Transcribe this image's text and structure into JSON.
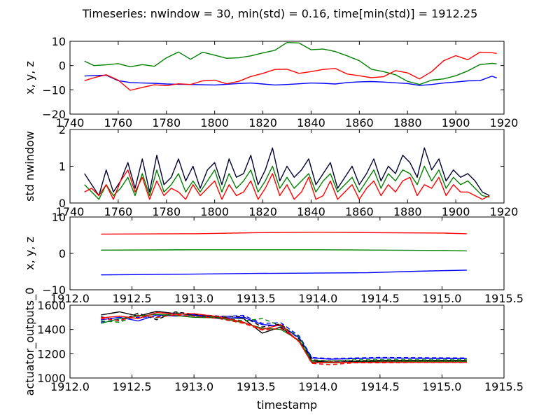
{
  "figure": {
    "suptitle": "Timeseries: nwindow = 30, min(std) = 0.16, time[min(std)] = 1912.25"
  },
  "chart_data": [
    {
      "type": "line",
      "ylabel": "x, y, z",
      "xlim": [
        1740,
        1920
      ],
      "ylim": [
        -20,
        10
      ],
      "xticks": [
        1740,
        1760,
        1780,
        1800,
        1820,
        1840,
        1860,
        1880,
        1900,
        1920
      ],
      "yticks": [
        -20,
        -10,
        0,
        10
      ],
      "series": [
        {
          "color": "#0000ff",
          "x": [
            1746,
            1750,
            1755,
            1760,
            1765,
            1770,
            1775,
            1780,
            1785,
            1790,
            1795,
            1800,
            1805,
            1810,
            1815,
            1820,
            1825,
            1830,
            1835,
            1840,
            1845,
            1850,
            1855,
            1860,
            1865,
            1870,
            1875,
            1880,
            1885,
            1890,
            1895,
            1900,
            1905,
            1910,
            1915,
            1917
          ],
          "y": [
            -4.3,
            -4.1,
            -4.0,
            -6.2,
            -7.0,
            -7.2,
            -7.3,
            -7.6,
            -7.7,
            -7.8,
            -7.9,
            -8.0,
            -7.7,
            -7.4,
            -7.2,
            -7.6,
            -8.0,
            -7.8,
            -7.5,
            -7.2,
            -7.3,
            -7.6,
            -7.0,
            -6.7,
            -6.6,
            -6.8,
            -7.1,
            -7.4,
            -8.2,
            -7.8,
            -7.2,
            -6.8,
            -6.3,
            -6.2,
            -4.4,
            -5.1
          ]
        },
        {
          "color": "#008000",
          "x": [
            1746,
            1750,
            1755,
            1760,
            1765,
            1770,
            1775,
            1780,
            1785,
            1790,
            1795,
            1800,
            1805,
            1810,
            1815,
            1820,
            1825,
            1830,
            1835,
            1840,
            1845,
            1850,
            1855,
            1860,
            1865,
            1870,
            1875,
            1880,
            1885,
            1890,
            1895,
            1900,
            1905,
            1910,
            1915,
            1917
          ],
          "y": [
            1.8,
            0.0,
            0.3,
            0.8,
            -0.5,
            0.4,
            -0.3,
            3.2,
            5.6,
            2.6,
            5.5,
            4.3,
            3.0,
            3.2,
            4.0,
            5.2,
            6.3,
            9.5,
            9.3,
            6.5,
            6.8,
            5.8,
            4.0,
            2.0,
            -1.5,
            -2.5,
            -3.8,
            -6.5,
            -7.8,
            -6.0,
            -5.5,
            -4.2,
            -2.2,
            0.4,
            0.9,
            0.7
          ]
        },
        {
          "color": "#ff0000",
          "x": [
            1746,
            1750,
            1755,
            1760,
            1765,
            1770,
            1775,
            1780,
            1785,
            1790,
            1795,
            1800,
            1805,
            1810,
            1815,
            1820,
            1825,
            1830,
            1835,
            1840,
            1845,
            1850,
            1855,
            1860,
            1865,
            1870,
            1875,
            1880,
            1885,
            1890,
            1895,
            1900,
            1905,
            1910,
            1915,
            1917
          ],
          "y": [
            -6.2,
            -5.0,
            -3.8,
            -6.0,
            -10.2,
            -9.0,
            -7.9,
            -8.3,
            -7.5,
            -7.8,
            -6.3,
            -6.0,
            -7.5,
            -6.5,
            -4.5,
            -3.2,
            -1.6,
            -1.5,
            -3.2,
            -2.5,
            -1.6,
            -1.2,
            -3.5,
            -4.2,
            -5.0,
            -4.6,
            -2.1,
            -3.0,
            -5.5,
            -2.5,
            2.0,
            4.1,
            2.4,
            5.5,
            5.3,
            5.0
          ]
        }
      ]
    },
    {
      "type": "line",
      "ylabel": "std nwindow",
      "xlim": [
        1740,
        1920
      ],
      "ylim": [
        0,
        2
      ],
      "xticks": [
        1740,
        1760,
        1780,
        1800,
        1820,
        1840,
        1860,
        1880,
        1900,
        1920
      ],
      "yticks": [
        0,
        1,
        2
      ],
      "series": [
        {
          "color": "#000033",
          "x": [
            1746,
            1749,
            1752,
            1755,
            1758,
            1761,
            1764,
            1767,
            1770,
            1773,
            1776,
            1779,
            1782,
            1785,
            1788,
            1791,
            1794,
            1797,
            1800,
            1803,
            1806,
            1809,
            1812,
            1815,
            1818,
            1821,
            1824,
            1827,
            1830,
            1833,
            1836,
            1839,
            1842,
            1845,
            1848,
            1851,
            1854,
            1857,
            1860,
            1863,
            1866,
            1869,
            1872,
            1875,
            1878,
            1881,
            1884,
            1887,
            1890,
            1893,
            1896,
            1899,
            1902,
            1905,
            1908,
            1911,
            1914
          ],
          "y": [
            0.8,
            0.5,
            0.2,
            0.9,
            0.3,
            0.6,
            1.1,
            0.4,
            1.2,
            0.3,
            1.3,
            0.5,
            0.7,
            1.2,
            0.6,
            1.0,
            0.4,
            0.9,
            1.1,
            0.5,
            1.2,
            0.7,
            0.8,
            1.3,
            0.5,
            0.9,
            1.5,
            0.6,
            1.0,
            0.7,
            0.9,
            1.2,
            0.5,
            0.8,
            1.1,
            0.4,
            0.7,
            1.0,
            0.5,
            0.8,
            1.2,
            0.6,
            1.0,
            0.8,
            1.3,
            1.1,
            0.7,
            1.5,
            0.9,
            1.2,
            0.6,
            0.9,
            0.7,
            0.8,
            0.6,
            0.3,
            0.2
          ]
        },
        {
          "color": "#008000",
          "x": [
            1746,
            1749,
            1752,
            1755,
            1758,
            1761,
            1764,
            1767,
            1770,
            1773,
            1776,
            1779,
            1782,
            1785,
            1788,
            1791,
            1794,
            1797,
            1800,
            1803,
            1806,
            1809,
            1812,
            1815,
            1818,
            1821,
            1824,
            1827,
            1830,
            1833,
            1836,
            1839,
            1842,
            1845,
            1848,
            1851,
            1854,
            1857,
            1860,
            1863,
            1866,
            1869,
            1872,
            1875,
            1878,
            1881,
            1884,
            1887,
            1890,
            1893,
            1896,
            1899,
            1902,
            1905,
            1908,
            1911,
            1914
          ],
          "y": [
            0.5,
            0.3,
            0.1,
            0.5,
            0.2,
            0.4,
            0.7,
            0.2,
            0.8,
            0.2,
            0.9,
            0.3,
            0.5,
            0.8,
            0.3,
            0.6,
            0.3,
            0.6,
            0.9,
            0.3,
            0.8,
            0.4,
            0.6,
            0.9,
            0.3,
            0.6,
            1.0,
            0.4,
            0.7,
            0.4,
            0.6,
            0.8,
            0.3,
            0.6,
            0.8,
            0.3,
            0.5,
            0.7,
            0.3,
            0.6,
            0.9,
            0.4,
            0.8,
            0.6,
            0.9,
            0.8,
            0.5,
            1.0,
            0.6,
            0.9,
            0.4,
            0.7,
            0.5,
            0.6,
            0.4,
            0.2,
            0.16
          ]
        },
        {
          "color": "#ff0000",
          "x": [
            1746,
            1749,
            1752,
            1755,
            1758,
            1761,
            1764,
            1767,
            1770,
            1773,
            1776,
            1779,
            1782,
            1785,
            1788,
            1791,
            1794,
            1797,
            1800,
            1803,
            1806,
            1809,
            1812,
            1815,
            1818,
            1821,
            1824,
            1827,
            1830,
            1833,
            1836,
            1839,
            1842,
            1845,
            1848,
            1851,
            1854,
            1857,
            1860,
            1863,
            1866,
            1869,
            1872,
            1875,
            1878,
            1881,
            1884,
            1887,
            1890,
            1893,
            1896,
            1899,
            1902,
            1905,
            1908,
            1911,
            1914
          ],
          "y": [
            0.3,
            0.4,
            0.2,
            0.5,
            0.1,
            0.6,
            0.9,
            0.3,
            0.7,
            0.1,
            0.6,
            0.2,
            0.4,
            0.3,
            0.1,
            0.5,
            0.2,
            0.4,
            0.6,
            0.1,
            0.5,
            0.2,
            0.3,
            0.6,
            0.1,
            0.4,
            0.8,
            0.2,
            0.5,
            0.1,
            0.3,
            0.7,
            0.1,
            0.2,
            0.6,
            0.1,
            0.3,
            0.5,
            0.1,
            0.4,
            0.6,
            0.2,
            0.5,
            0.3,
            0.6,
            0.7,
            0.2,
            0.5,
            0.4,
            0.7,
            0.2,
            0.5,
            0.3,
            0.3,
            0.2,
            0.1,
            0.2
          ]
        }
      ]
    },
    {
      "type": "line",
      "ylabel": "x, y, z",
      "xlim": [
        1912.0,
        1915.5
      ],
      "ylim": [
        -10,
        10
      ],
      "xticks": [
        1912.0,
        1912.5,
        1913.0,
        1913.5,
        1914.0,
        1914.5,
        1915.0,
        1915.5
      ],
      "yticks": [
        -10,
        0,
        10
      ],
      "series": [
        {
          "color": "#ff0000",
          "x": [
            1912.25,
            1913.0,
            1913.5,
            1914.0,
            1914.5,
            1915.0,
            1915.2
          ],
          "y": [
            5.3,
            5.4,
            5.7,
            5.8,
            5.7,
            5.6,
            5.4
          ]
        },
        {
          "color": "#008000",
          "x": [
            1912.25,
            1913.0,
            1913.5,
            1914.0,
            1914.5,
            1915.0,
            1915.2
          ],
          "y": [
            0.9,
            1.0,
            1.0,
            1.0,
            0.9,
            0.8,
            0.7
          ]
        },
        {
          "color": "#0000ff",
          "x": [
            1912.25,
            1913.0,
            1913.5,
            1914.0,
            1914.4,
            1914.8,
            1915.2
          ],
          "y": [
            -5.9,
            -5.7,
            -5.5,
            -5.4,
            -5.3,
            -4.9,
            -4.6
          ]
        }
      ]
    },
    {
      "type": "line",
      "ylabel": "actuator_outputs_0",
      "xlabel": "timestamp",
      "xlim": [
        1912.0,
        1915.5
      ],
      "ylim": [
        1000,
        1600
      ],
      "xticks": [
        1912.0,
        1912.5,
        1913.0,
        1913.5,
        1914.0,
        1914.5,
        1915.0,
        1915.5
      ],
      "yticks": [
        1000,
        1200,
        1400,
        1600
      ],
      "series": [
        {
          "color": "#000000",
          "dash": "none",
          "x": [
            1912.25,
            1912.4,
            1912.55,
            1912.7,
            1912.85,
            1913.0,
            1913.2,
            1913.4,
            1913.55,
            1913.7,
            1913.85,
            1913.95,
            1914.1,
            1914.3,
            1914.5,
            1914.8,
            1915.2
          ],
          "y": [
            1520,
            1545,
            1510,
            1550,
            1530,
            1520,
            1500,
            1490,
            1370,
            1420,
            1300,
            1140,
            1130,
            1135,
            1140,
            1140,
            1140
          ]
        },
        {
          "color": "#000000",
          "dash": "6,4",
          "x": [
            1912.25,
            1912.4,
            1912.55,
            1912.7,
            1912.85,
            1913.0,
            1913.2,
            1913.4,
            1913.55,
            1913.7,
            1913.85,
            1913.95,
            1914.1,
            1914.3,
            1914.5,
            1914.8,
            1915.2
          ],
          "y": [
            1505,
            1470,
            1535,
            1480,
            1545,
            1525,
            1510,
            1505,
            1420,
            1445,
            1320,
            1150,
            1140,
            1142,
            1145,
            1145,
            1145
          ]
        },
        {
          "color": "#0000ff",
          "dash": "none",
          "x": [
            1912.25,
            1912.4,
            1912.55,
            1912.7,
            1912.85,
            1913.0,
            1913.2,
            1913.4,
            1913.55,
            1913.7,
            1913.85,
            1913.95,
            1914.1,
            1914.3,
            1914.5,
            1914.8,
            1915.2
          ],
          "y": [
            1480,
            1500,
            1470,
            1520,
            1510,
            1515,
            1490,
            1500,
            1440,
            1430,
            1330,
            1165,
            1155,
            1160,
            1165,
            1162,
            1160
          ]
        },
        {
          "color": "#0000ff",
          "dash": "6,4",
          "x": [
            1912.25,
            1912.4,
            1912.55,
            1912.7,
            1912.85,
            1913.0,
            1913.2,
            1913.4,
            1913.55,
            1913.7,
            1913.85,
            1913.95,
            1914.1,
            1914.3,
            1914.5,
            1914.8,
            1915.2
          ],
          "y": [
            1460,
            1485,
            1500,
            1505,
            1535,
            1520,
            1505,
            1515,
            1450,
            1455,
            1345,
            1170,
            1160,
            1165,
            1170,
            1168,
            1165
          ]
        },
        {
          "color": "#008000",
          "dash": "none",
          "x": [
            1912.25,
            1912.4,
            1912.55,
            1912.7,
            1912.85,
            1913.0,
            1913.2,
            1913.4,
            1913.55,
            1913.7,
            1913.85,
            1913.95,
            1914.1,
            1914.3,
            1914.5,
            1914.8,
            1915.2
          ],
          "y": [
            1450,
            1490,
            1510,
            1525,
            1515,
            1500,
            1495,
            1455,
            1410,
            1400,
            1310,
            1130,
            1125,
            1130,
            1132,
            1135,
            1135
          ]
        },
        {
          "color": "#008000",
          "dash": "6,4",
          "x": [
            1912.25,
            1912.4,
            1912.55,
            1912.7,
            1912.85,
            1913.0,
            1913.2,
            1913.4,
            1913.55,
            1913.7,
            1913.85,
            1913.95,
            1914.1,
            1914.3,
            1914.5,
            1914.8,
            1915.2
          ],
          "y": [
            1470,
            1460,
            1520,
            1495,
            1540,
            1510,
            1500,
            1470,
            1490,
            1430,
            1340,
            1145,
            1140,
            1150,
            1150,
            1150,
            1150
          ]
        },
        {
          "color": "#ff0000",
          "dash": "none",
          "x": [
            1912.25,
            1912.4,
            1912.55,
            1912.7,
            1912.85,
            1913.0,
            1913.2,
            1913.4,
            1913.55,
            1913.7,
            1913.85,
            1913.95,
            1914.1,
            1914.3,
            1914.5,
            1914.8,
            1915.2
          ],
          "y": [
            1495,
            1510,
            1490,
            1540,
            1525,
            1530,
            1505,
            1460,
            1400,
            1440,
            1295,
            1125,
            1130,
            1128,
            1130,
            1130,
            1130
          ]
        },
        {
          "color": "#ff0000",
          "dash": "6,4",
          "x": [
            1912.25,
            1912.4,
            1912.55,
            1912.7,
            1912.85,
            1913.0,
            1913.2,
            1913.4,
            1913.55,
            1913.7,
            1913.85,
            1913.95,
            1914.1,
            1914.3,
            1914.5,
            1914.8,
            1915.2
          ],
          "y": [
            1490,
            1475,
            1515,
            1500,
            1520,
            1510,
            1490,
            1450,
            1395,
            1410,
            1300,
            1120,
            1110,
            1125,
            1125,
            1128,
            1128
          ]
        }
      ]
    }
  ]
}
